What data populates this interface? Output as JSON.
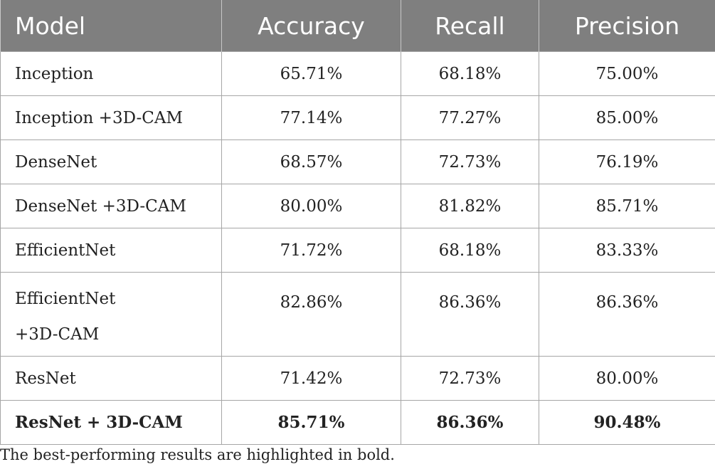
{
  "table": {
    "headers": [
      "Model",
      "Accuracy",
      "Recall",
      "Precision"
    ],
    "rows": [
      {
        "model": "Inception",
        "accuracy": "65.71%",
        "recall": "68.18%",
        "precision": "75.00%"
      },
      {
        "model": "Inception +3D-CAM",
        "accuracy": "77.14%",
        "recall": "77.27%",
        "precision": "85.00%"
      },
      {
        "model": "DenseNet",
        "accuracy": "68.57%",
        "recall": "72.73%",
        "precision": "76.19%"
      },
      {
        "model": "DenseNet +3D-CAM",
        "accuracy": "80.00%",
        "recall": "81.82%",
        "precision": "85.71%"
      },
      {
        "model": "EfficientNet",
        "accuracy": "71.72%",
        "recall": "68.18%",
        "precision": "83.33%"
      },
      {
        "model_line1": "EfficientNet",
        "model_line2": "+3D-CAM",
        "accuracy": "82.86%",
        "recall": "86.36%",
        "precision": "86.36%"
      },
      {
        "model": "ResNet",
        "accuracy": "71.42%",
        "recall": "72.73%",
        "precision": "80.00%"
      },
      {
        "model": "ResNet + 3D-CAM",
        "accuracy": "85.71%",
        "recall": "86.36%",
        "precision": "90.48%"
      }
    ]
  },
  "footnote": "The best-performing results are highlighted in bold."
}
